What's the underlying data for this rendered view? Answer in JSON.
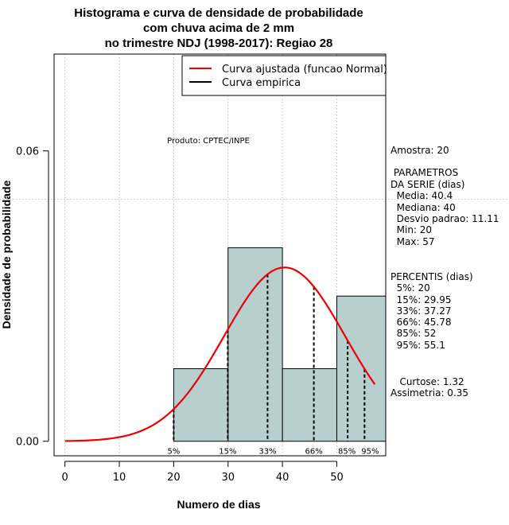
{
  "chart_data": {
    "type": "histogram",
    "title": [
      "Histograma e curva de densidade de probabilidade",
      "com chuva acima de 2 mm",
      "no trimestre NDJ (1998-2017): Regiao 28"
    ],
    "xlabel": "Numero de dias",
    "ylabel": "Densidade de probabilidade",
    "xlim": [
      -2,
      59
    ],
    "ylim": [
      -0.003,
      0.08
    ],
    "x_ticks": [
      0,
      10,
      20,
      30,
      40,
      50
    ],
    "y_ticks": [
      0.0,
      0.06
    ],
    "y_tick_labels": [
      "0.00",
      "0.06"
    ],
    "grid_v": [
      0,
      10,
      20,
      30,
      40,
      50
    ],
    "grid_h": [
      0.05
    ],
    "bins": [
      {
        "start": 20,
        "end": 30,
        "density": 0.015
      },
      {
        "start": 30,
        "end": 40,
        "density": 0.04
      },
      {
        "start": 40,
        "end": 50,
        "density": 0.015
      },
      {
        "start": 50,
        "end": 60,
        "density": 0.03
      }
    ],
    "bar_color": "#b7cfcf",
    "curve_color": "#ee0000",
    "normal_fit": {
      "mean": 40.4,
      "sd": 11.11,
      "from": 0,
      "to": 57
    },
    "percentile_lines": [
      {
        "label": "5%",
        "x": 20
      },
      {
        "label": "15%",
        "x": 29.95
      },
      {
        "label": "33%",
        "x": 37.27
      },
      {
        "label": "66%",
        "x": 45.78
      },
      {
        "label": "85%",
        "x": 52
      },
      {
        "label": "95%",
        "x": 55.1
      }
    ],
    "legend": [
      "Curva ajustada (funcao Normal)",
      "Curva empirica"
    ],
    "product_note": "Produto: CPTEC/INPE",
    "stats": [
      "Amostra: 20",
      " PARAMETROS",
      "DA SERIE (dias)",
      "  Media: 40.4",
      "  Mediana: 40",
      "  Desvio padrao: 11.11",
      "  Min: 20",
      "  Max: 57",
      "PERCENTIS (dias)",
      "  5%: 20",
      "  15%: 29.95",
      "  33%: 37.27",
      "  66%: 45.78",
      "  85%: 52",
      "  95%: 55.1",
      "   Curtose: 1.32",
      "Assimetria: 0.35"
    ]
  }
}
